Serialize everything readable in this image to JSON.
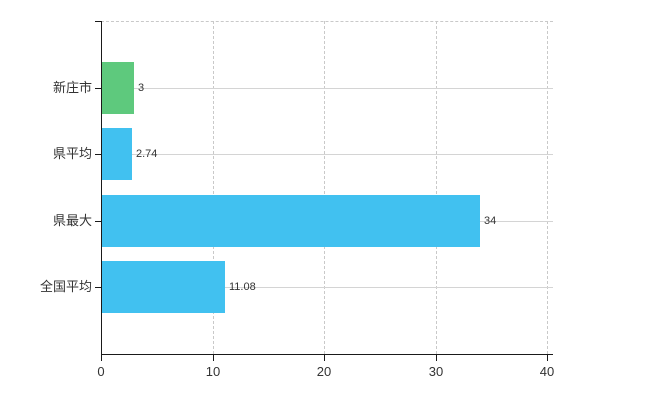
{
  "chart_data": {
    "type": "bar",
    "orientation": "horizontal",
    "title": "",
    "xlabel": "",
    "ylabel": "",
    "categories": [
      "新庄市",
      "県平均",
      "県最大",
      "全国平均"
    ],
    "values": [
      3,
      2.74,
      34,
      11.08
    ],
    "value_labels": [
      "3",
      "2.74",
      "34",
      "11.08"
    ],
    "bar_colors": [
      "#5ec97d",
      "#41c1f0",
      "#41c1f0",
      "#41c1f0"
    ],
    "x_ticks": [
      0,
      10,
      20,
      30,
      40
    ],
    "x_tick_labels": [
      "0",
      "10",
      "20",
      "30",
      "40"
    ],
    "xlim": [
      0,
      40
    ],
    "grid": "on",
    "legend": "none"
  },
  "colors": {
    "bar_green": "#5ec97d",
    "bar_blue": "#41c1f0",
    "axis": "#1a1a1a",
    "grid_solid": "#d4d4d4",
    "grid_dashed": "#c9c9c9",
    "text": "#333333",
    "background": "#ffffff"
  }
}
